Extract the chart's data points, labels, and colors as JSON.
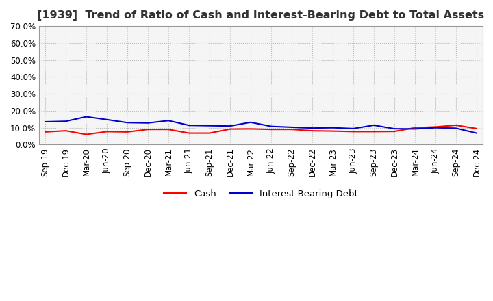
{
  "title": "[1939]  Trend of Ratio of Cash and Interest-Bearing Debt to Total Assets",
  "x_labels": [
    "Sep-19",
    "Dec-19",
    "Mar-20",
    "Jun-20",
    "Sep-20",
    "Dec-20",
    "Mar-21",
    "Jun-21",
    "Sep-21",
    "Dec-21",
    "Mar-22",
    "Jun-22",
    "Sep-22",
    "Dec-22",
    "Mar-23",
    "Jun-23",
    "Sep-23",
    "Dec-23",
    "Mar-24",
    "Jun-24",
    "Sep-24",
    "Dec-24"
  ],
  "cash": [
    0.075,
    0.082,
    0.06,
    0.077,
    0.075,
    0.09,
    0.09,
    0.068,
    0.068,
    0.092,
    0.093,
    0.09,
    0.09,
    0.082,
    0.08,
    0.077,
    0.077,
    0.078,
    0.1,
    0.105,
    0.115,
    0.095
  ],
  "interest_bearing_debt": [
    0.135,
    0.138,
    0.165,
    0.148,
    0.13,
    0.128,
    0.142,
    0.114,
    0.112,
    0.11,
    0.132,
    0.108,
    0.103,
    0.098,
    0.1,
    0.095,
    0.115,
    0.094,
    0.093,
    0.1,
    0.097,
    0.068
  ],
  "cash_color": "#ff0000",
  "debt_color": "#0000cc",
  "ylim": [
    0.0,
    0.7
  ],
  "yticks": [
    0.0,
    0.1,
    0.2,
    0.3,
    0.4,
    0.5,
    0.6,
    0.7
  ],
  "background_color": "#ffffff",
  "plot_bg_color": "#f5f5f5",
  "grid_color": "#bbbbbb",
  "title_color": "#333333",
  "legend_cash": "Cash",
  "legend_debt": "Interest-Bearing Debt",
  "title_fontsize": 11.5,
  "tick_fontsize": 8.5,
  "legend_fontsize": 9.5
}
